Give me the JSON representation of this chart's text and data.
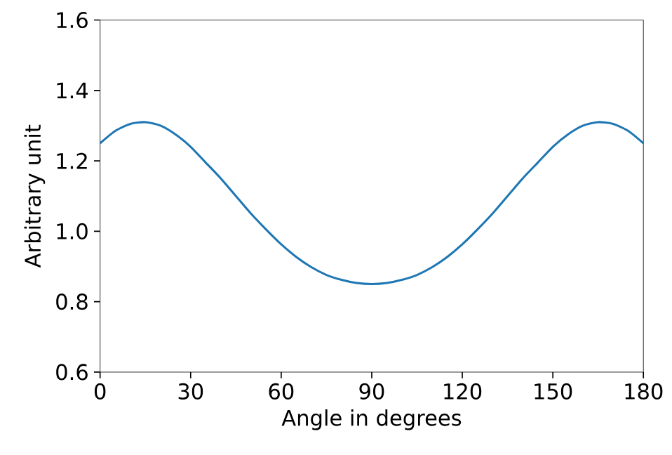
{
  "chart_data": {
    "type": "line",
    "xlabel": "Angle in degrees",
    "ylabel": "Arbitrary unit",
    "x": [
      0,
      5,
      10,
      15,
      20,
      25,
      30,
      35,
      40,
      45,
      50,
      55,
      60,
      65,
      70,
      75,
      80,
      85,
      90,
      95,
      100,
      105,
      110,
      115,
      120,
      125,
      130,
      135,
      140,
      145,
      150,
      155,
      160,
      165,
      170,
      175,
      180
    ],
    "series": [
      {
        "color": "#1f77b4",
        "values": [
          1.25,
          1.285,
          1.305,
          1.31,
          1.3,
          1.275,
          1.24,
          1.195,
          1.15,
          1.1,
          1.05,
          1.005,
          0.963,
          0.927,
          0.898,
          0.876,
          0.862,
          0.853,
          0.85,
          0.853,
          0.862,
          0.876,
          0.898,
          0.927,
          0.963,
          1.005,
          1.05,
          1.1,
          1.15,
          1.195,
          1.24,
          1.275,
          1.3,
          1.31,
          1.305,
          1.285,
          1.25
        ]
      }
    ],
    "xlim": [
      0,
      180
    ],
    "ylim": [
      0.6,
      1.6
    ],
    "xticks": [
      0,
      30,
      60,
      90,
      120,
      150,
      180
    ],
    "yticks": [
      {
        "value": 0.6,
        "label": "0.6"
      },
      {
        "value": 0.8,
        "label": "0.8"
      },
      {
        "value": 1.0,
        "label": "1.0"
      },
      {
        "value": 1.2,
        "label": "1.2"
      },
      {
        "value": 1.4,
        "label": "1.4"
      },
      {
        "value": 1.6,
        "label": "1.6"
      }
    ]
  }
}
